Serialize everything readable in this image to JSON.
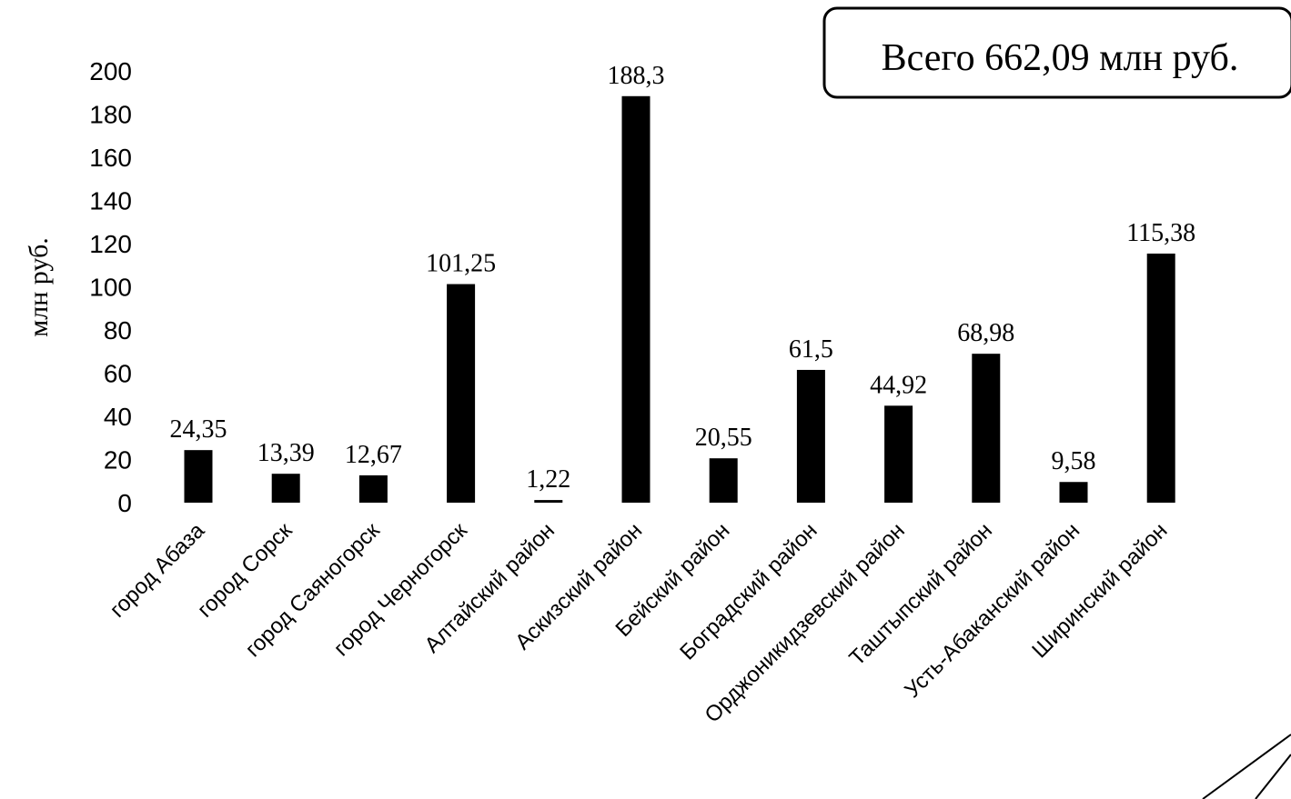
{
  "chart_data": {
    "type": "bar",
    "ylabel": "млн руб.",
    "ylim": [
      0,
      200
    ],
    "yticks": [
      "0",
      "20",
      "40",
      "60",
      "80",
      "100",
      "120",
      "140",
      "160",
      "180",
      "200"
    ],
    "categories": [
      "город Абаза",
      "город Сорск",
      "город Саяногорск",
      "город Черногорск",
      "Алтайский район",
      "Аскизский район",
      "Бейский район",
      "Боградский район",
      "Орджоникидзевский район",
      "Таштыпский район",
      "Усть-Абаканский район",
      "Ширинский район"
    ],
    "values": [
      24.35,
      13.39,
      12.67,
      101.25,
      1.22,
      188.3,
      20.55,
      61.5,
      44.92,
      68.98,
      9.58,
      115.38
    ],
    "value_labels": [
      "24,35",
      "13,39",
      "12,67",
      "101,25",
      "1,22",
      "188,3",
      "20,55",
      "61,5",
      "44,92",
      "68,98",
      "9,58",
      "115,38"
    ],
    "bar_color": "#000000",
    "grid": false,
    "legend": false
  },
  "total_box": {
    "text": "Всего 662,09 млн руб."
  }
}
